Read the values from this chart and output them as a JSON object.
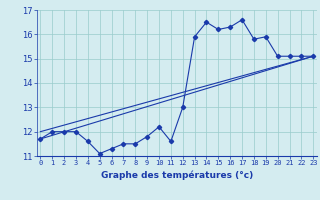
{
  "xlabel": "Graphe des températures (°c)",
  "xlim": [
    0,
    23
  ],
  "ylim": [
    11,
    17
  ],
  "yticks": [
    11,
    12,
    13,
    14,
    15,
    16,
    17
  ],
  "xticks": [
    0,
    1,
    2,
    3,
    4,
    5,
    6,
    7,
    8,
    9,
    10,
    11,
    12,
    13,
    14,
    15,
    16,
    17,
    18,
    19,
    20,
    21,
    22,
    23
  ],
  "bg_color": "#d4ecf0",
  "line_color": "#1a3aaa",
  "grid_color": "#99cccc",
  "line1_x": [
    0,
    1,
    2,
    3,
    4,
    5,
    6,
    7,
    8,
    9,
    10,
    11,
    12,
    13,
    14,
    15,
    16,
    17,
    18,
    19,
    20,
    21,
    22,
    23
  ],
  "line1_y": [
    11.7,
    12.0,
    12.0,
    12.0,
    11.6,
    11.1,
    11.3,
    11.5,
    11.5,
    11.8,
    12.2,
    11.6,
    13.0,
    15.9,
    16.5,
    16.2,
    16.3,
    16.6,
    15.8,
    15.9,
    15.1,
    15.1,
    15.1,
    15.1
  ],
  "line2_x": [
    0,
    23
  ],
  "line2_y": [
    11.7,
    15.1
  ],
  "line3_x": [
    0,
    23
  ],
  "line3_y": [
    12.0,
    15.1
  ]
}
